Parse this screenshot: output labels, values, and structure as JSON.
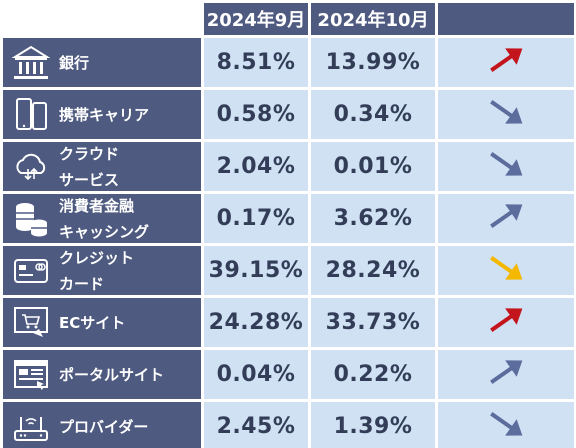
{
  "header": {
    "col1": "2024年9月",
    "col2": "2024年10月",
    "col3": ""
  },
  "colors": {
    "header_bg": "#4e5a80",
    "cell_bg": "#cfe1f3",
    "arrow_up_red": "#c4151c",
    "arrow_down_yellow": "#f5b800",
    "arrow_blue": "#5c6c9c"
  },
  "rows": [
    {
      "label_lines": [
        "銀行"
      ],
      "icon": "bank-icon",
      "sep": "8.51%",
      "oct": "13.99%",
      "trend": "up",
      "color": "#c4151c"
    },
    {
      "label_lines": [
        "携帯キャリア"
      ],
      "icon": "smartphone-icon",
      "sep": "0.58%",
      "oct": "0.34%",
      "trend": "down",
      "color": "#5c6c9c"
    },
    {
      "label_lines": [
        "クラウド",
        "サービス"
      ],
      "icon": "cloud-icon",
      "sep": "2.04%",
      "oct": "0.01%",
      "trend": "down",
      "color": "#5c6c9c"
    },
    {
      "label_lines": [
        "消費者金融",
        "キャッシング"
      ],
      "icon": "coins-icon",
      "sep": "0.17%",
      "oct": "3.62%",
      "trend": "up",
      "color": "#5c6c9c"
    },
    {
      "label_lines": [
        "クレジット",
        "カード"
      ],
      "icon": "credit-card-icon",
      "sep": "39.15%",
      "oct": "28.24%",
      "trend": "down",
      "color": "#f5b800"
    },
    {
      "label_lines": [
        "ECサイト"
      ],
      "icon": "shopping-cart-icon",
      "sep": "24.28%",
      "oct": "33.73%",
      "trend": "up",
      "color": "#c4151c"
    },
    {
      "label_lines": [
        "ポータルサイト"
      ],
      "icon": "portal-icon",
      "sep": "0.04%",
      "oct": "0.22%",
      "trend": "up",
      "color": "#5c6c9c"
    },
    {
      "label_lines": [
        "プロバイダー"
      ],
      "icon": "router-icon",
      "sep": "2.45%",
      "oct": "1.39%",
      "trend": "down",
      "color": "#5c6c9c"
    }
  ]
}
